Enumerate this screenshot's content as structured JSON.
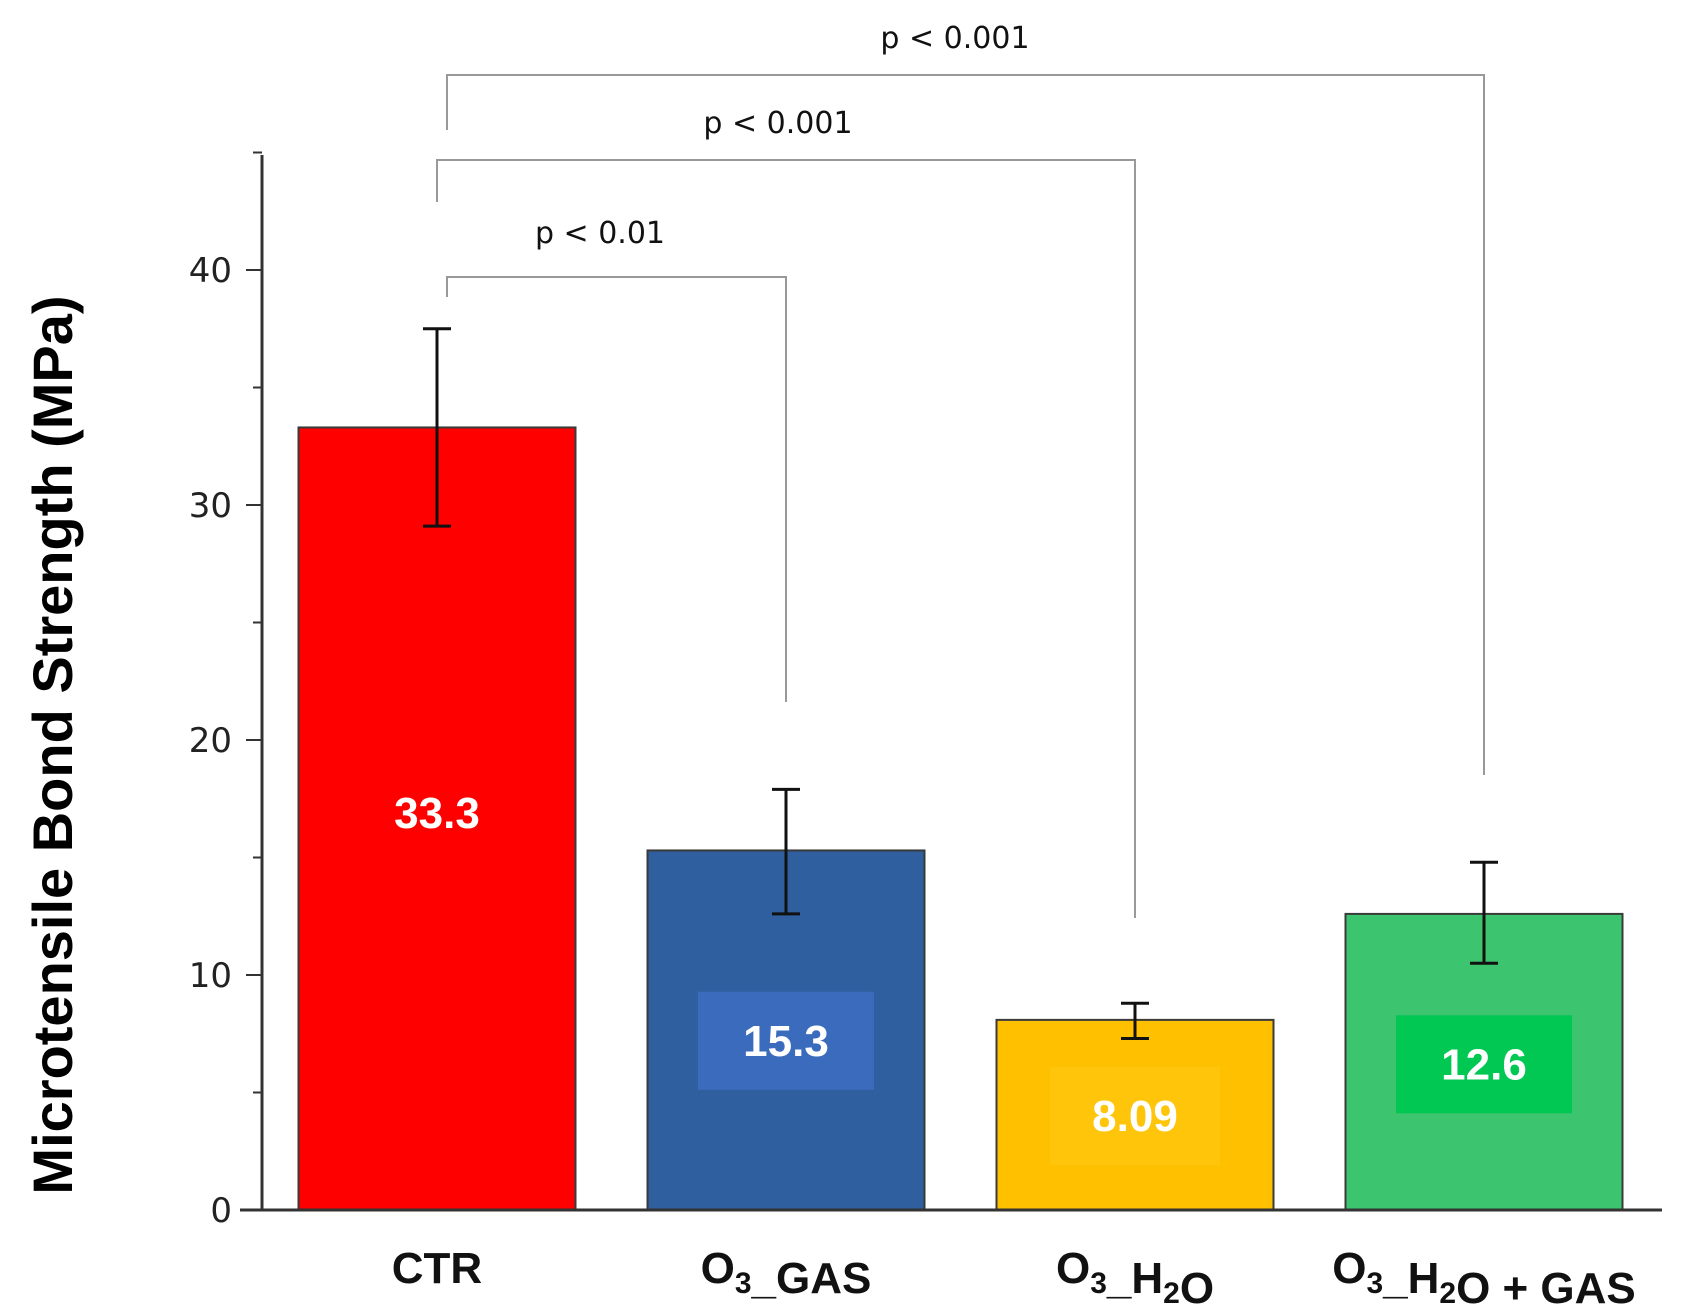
{
  "chart_data": {
    "type": "bar",
    "title": "",
    "xlabel": "",
    "ylabel": "Microtensile Bond Strength (MPa)",
    "ylim": [
      0,
      45
    ],
    "yticks": [
      0,
      10,
      20,
      30,
      40
    ],
    "grid": false,
    "categories": [
      {
        "base": "CTR",
        "sub": "",
        "mid": "",
        "sub2": "",
        "tail": ""
      },
      {
        "base": "O",
        "sub": "3",
        "mid": "_GAS",
        "sub2": "",
        "tail": ""
      },
      {
        "base": "O",
        "sub": "3",
        "mid": "_H",
        "sub2": "2",
        "tail": "O"
      },
      {
        "base": "O",
        "sub": "3",
        "mid": "_H",
        "sub2": "2",
        "tail": "O + GAS"
      }
    ],
    "values": [
      33.3,
      15.3,
      8.09,
      12.6
    ],
    "value_labels": [
      "33.3",
      "15.3",
      "8.09",
      "12.6"
    ],
    "error": [
      {
        "low": 29.1,
        "high": 37.5
      },
      {
        "low": 12.6,
        "high": 17.9
      },
      {
        "low": 7.3,
        "high": 8.8
      },
      {
        "low": 10.5,
        "high": 14.8
      }
    ],
    "colors": [
      "#ff0000",
      "#2f5f9e",
      "#ffc000",
      "#3cc46f"
    ],
    "label_box_colors": [
      "",
      "#3a6bbd",
      "#ffc50a",
      "#00c853"
    ],
    "significance": [
      {
        "from": 0,
        "to": 1,
        "label": "p < 0.01"
      },
      {
        "from": 0,
        "to": 2,
        "label": "p < 0.001"
      },
      {
        "from": 0,
        "to": 3,
        "label": "p < 0.001"
      }
    ]
  }
}
